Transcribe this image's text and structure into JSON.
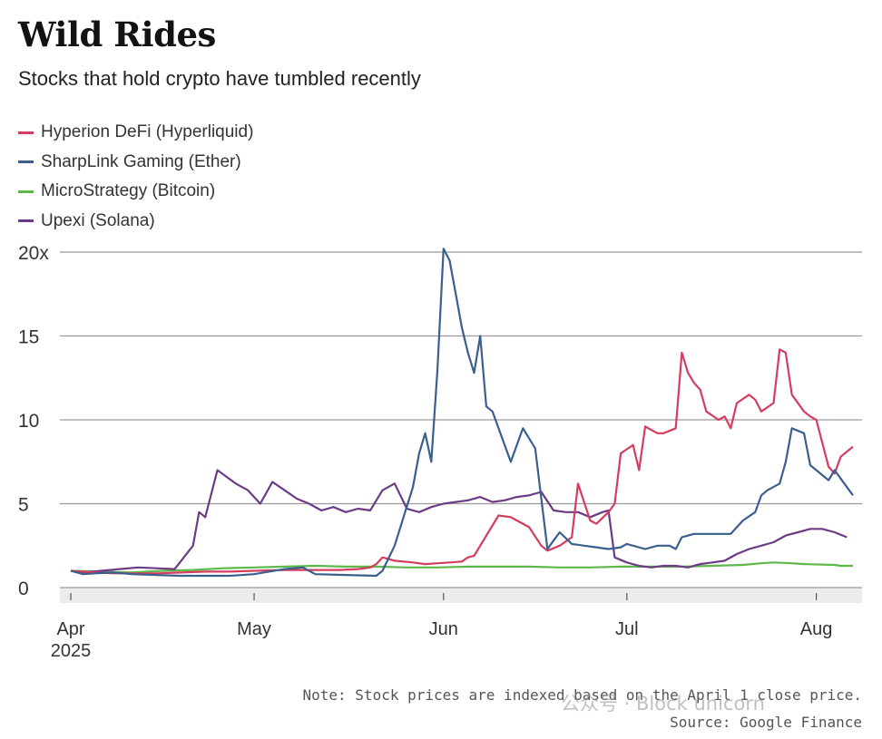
{
  "title": "Wild Rides",
  "subtitle": "Stocks that hold crypto have tumbled recently",
  "note": "Note: Stock prices are indexed based on the April 1 close price.",
  "source": "Source: Google Finance",
  "watermark": "公众号 · Block unicorn",
  "colors": {
    "hyperion": "#d43d5d",
    "sharplink": "#3a5f8f",
    "microstrategy": "#5cb84a",
    "upexi": "#6b3b85",
    "grid": "#9a9a9a",
    "axis_band": "#ececec"
  },
  "chart_data": {
    "type": "line",
    "title": "Wild Rides",
    "subtitle": "Stocks that hold crypto have tumbled recently",
    "xlabel": "",
    "ylabel": "",
    "x_unit": "day index from April 1, 2025",
    "xlim": [
      0,
      128
    ],
    "ylim": [
      0,
      20
    ],
    "y_ticks": [
      {
        "value": 0,
        "label": "0"
      },
      {
        "value": 5,
        "label": "5"
      },
      {
        "value": 10,
        "label": "10"
      },
      {
        "value": 15,
        "label": "15"
      },
      {
        "value": 20,
        "label": "20x"
      }
    ],
    "x_ticks": [
      {
        "value": 0,
        "label": "Apr",
        "sublabel": "2025"
      },
      {
        "value": 30,
        "label": "May",
        "sublabel": ""
      },
      {
        "value": 61,
        "label": "Jun",
        "sublabel": ""
      },
      {
        "value": 91,
        "label": "Jul",
        "sublabel": ""
      },
      {
        "value": 122,
        "label": "Aug",
        "sublabel": ""
      }
    ],
    "legend_position": "top-left",
    "grid": true,
    "series": [
      {
        "key": "hyperion",
        "name": "Hyperion DeFi (Hyperliquid)",
        "x": [
          0,
          2,
          4,
          7,
          10,
          14,
          18,
          22,
          26,
          30,
          35,
          40,
          44,
          47,
          49,
          50,
          51,
          53,
          56,
          58,
          60,
          62,
          64,
          65,
          66,
          67,
          70,
          72,
          73,
          75,
          77,
          78,
          80,
          82,
          83,
          85,
          86,
          88,
          89,
          90,
          92,
          93,
          94,
          96,
          97,
          99,
          100,
          101,
          102,
          103,
          104,
          106,
          107,
          108,
          109,
          111,
          112,
          113,
          115,
          116,
          117,
          118,
          120,
          121,
          122,
          124,
          125,
          126,
          128
        ],
        "values": [
          1,
          0.95,
          0.9,
          0.85,
          0.85,
          0.85,
          0.9,
          0.95,
          0.95,
          1,
          1.05,
          1.05,
          1.05,
          1.1,
          1.2,
          1.4,
          1.8,
          1.6,
          1.5,
          1.4,
          1.45,
          1.5,
          1.55,
          1.8,
          1.9,
          2.5,
          4.3,
          4.2,
          4.0,
          3.6,
          2.5,
          2.2,
          2.5,
          3.0,
          6.2,
          4.0,
          3.8,
          4.5,
          5.0,
          8.0,
          8.5,
          7.0,
          9.6,
          9.2,
          9.2,
          9.5,
          14.0,
          12.8,
          12.2,
          11.8,
          10.5,
          10.0,
          10.2,
          9.5,
          11.0,
          11.5,
          11.2,
          10.5,
          11.0,
          14.2,
          14.0,
          11.5,
          10.5,
          10.2,
          10.0,
          7.2,
          6.8,
          7.8,
          8.4
        ]
      },
      {
        "key": "sharplink",
        "name": "SharpLink Gaming (Ether)",
        "x": [
          0,
          2,
          4,
          7,
          10,
          14,
          18,
          22,
          26,
          30,
          35,
          38,
          40,
          45,
          50,
          51,
          53,
          56,
          57,
          58,
          59,
          60,
          61,
          62,
          63,
          64,
          65,
          66,
          67,
          68,
          69,
          70,
          72,
          73,
          74,
          76,
          78,
          79,
          80,
          82,
          84,
          86,
          88,
          90,
          91,
          92,
          94,
          96,
          98,
          99,
          100,
          102,
          104,
          106,
          108,
          110,
          112,
          113,
          114,
          116,
          117,
          118,
          120,
          121,
          122,
          124,
          125,
          126,
          128
        ],
        "values": [
          1,
          0.8,
          0.85,
          0.9,
          0.8,
          0.75,
          0.7,
          0.7,
          0.7,
          0.8,
          1.1,
          1.2,
          0.8,
          0.75,
          0.7,
          1.0,
          2.5,
          6.0,
          8.0,
          9.2,
          7.5,
          13.0,
          20.2,
          19.5,
          17.5,
          15.5,
          14.0,
          12.8,
          15.0,
          10.8,
          10.5,
          9.5,
          7.5,
          8.5,
          9.5,
          8.3,
          2.3,
          2.8,
          3.3,
          2.6,
          2.5,
          2.4,
          2.3,
          2.4,
          2.6,
          2.5,
          2.3,
          2.5,
          2.5,
          2.3,
          3.0,
          3.2,
          3.2,
          3.2,
          3.2,
          4.0,
          4.5,
          5.5,
          5.8,
          6.2,
          7.5,
          9.5,
          9.2,
          7.3,
          7.0,
          6.4,
          7.0,
          6.5,
          5.5
        ]
      },
      {
        "key": "microstrategy",
        "name": "MicroStrategy (Bitcoin)",
        "x": [
          0,
          5,
          10,
          15,
          20,
          25,
          30,
          35,
          40,
          45,
          50,
          55,
          60,
          65,
          70,
          75,
          80,
          85,
          90,
          95,
          100,
          105,
          110,
          113,
          115,
          118,
          120,
          125,
          126,
          128,
          130
        ],
        "values": [
          1,
          0.95,
          0.9,
          1.0,
          1.05,
          1.15,
          1.2,
          1.25,
          1.3,
          1.25,
          1.25,
          1.2,
          1.2,
          1.25,
          1.25,
          1.25,
          1.2,
          1.2,
          1.25,
          1.25,
          1.25,
          1.3,
          1.35,
          1.45,
          1.5,
          1.45,
          1.4,
          1.35,
          1.3,
          1.3,
          1.25
        ]
      },
      {
        "key": "upexi",
        "name": "Upexi (Solana)",
        "x": [
          0,
          2,
          5,
          8,
          11,
          14,
          17,
          20,
          21,
          22,
          24,
          27,
          29,
          31,
          33,
          35,
          37,
          39,
          41,
          43,
          45,
          47,
          49,
          51,
          53,
          55,
          57,
          59,
          61,
          63,
          65,
          67,
          69,
          71,
          73,
          75,
          77,
          79,
          81,
          82,
          83,
          85,
          87,
          88,
          89,
          91,
          93,
          95,
          97,
          99,
          101,
          103,
          105,
          107,
          109,
          111,
          113,
          115,
          117,
          119,
          121,
          123,
          125,
          127,
          129,
          131
        ],
        "values": [
          1,
          0.9,
          1.0,
          1.1,
          1.2,
          1.15,
          1.1,
          2.5,
          4.5,
          4.2,
          7.0,
          6.2,
          5.8,
          5.0,
          6.3,
          5.8,
          5.3,
          5.0,
          4.6,
          4.8,
          4.5,
          4.7,
          4.6,
          5.8,
          6.2,
          4.7,
          4.5,
          4.8,
          5.0,
          5.1,
          5.2,
          5.4,
          5.1,
          5.2,
          5.4,
          5.5,
          5.7,
          4.6,
          4.5,
          4.5,
          4.5,
          4.2,
          4.5,
          4.6,
          1.8,
          1.5,
          1.3,
          1.2,
          1.3,
          1.3,
          1.2,
          1.4,
          1.5,
          1.6,
          2.0,
          2.3,
          2.5,
          2.7,
          3.1,
          3.3,
          3.5,
          3.5,
          3.3,
          3.0,
          2.8,
          2.7
        ]
      }
    ]
  }
}
